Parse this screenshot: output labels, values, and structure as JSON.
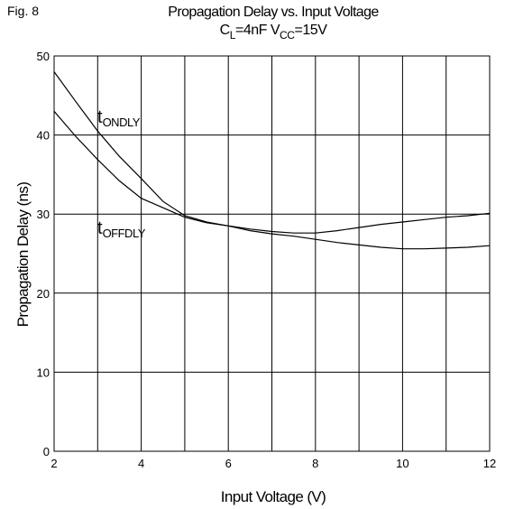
{
  "figure": {
    "label": "Fig. 8",
    "title": "Propagation Delay vs. Input Voltage",
    "subtitle_parts": [
      "C",
      "L",
      "=4nF  V",
      "CC",
      "=15V"
    ]
  },
  "chart_data": {
    "type": "line",
    "title": "Propagation Delay vs. Input Voltage",
    "subtitle": "CL=4nF VCC=15V",
    "xlabel": "Input Voltage (V)",
    "ylabel": "Propagation Delay (ns)",
    "xlim": [
      2,
      12
    ],
    "ylim": [
      0,
      50
    ],
    "xticks": [
      2,
      4,
      6,
      8,
      10,
      12
    ],
    "yticks": [
      0,
      10,
      20,
      30,
      40,
      50
    ],
    "grid": true,
    "series": [
      {
        "name": "tONDLY",
        "label_main": "t",
        "label_sub": "ONDLY",
        "x": [
          2,
          2.5,
          3,
          3.5,
          4,
          4.5,
          5,
          5.5,
          6,
          6.5,
          7,
          7.5,
          8,
          8.5,
          9,
          9.5,
          10,
          10.5,
          11,
          11.5,
          12
        ],
        "y": [
          48.0,
          44.2,
          40.5,
          37.3,
          34.5,
          31.6,
          29.8,
          29.0,
          28.5,
          28.1,
          27.8,
          27.6,
          27.6,
          27.9,
          28.3,
          28.7,
          29.0,
          29.3,
          29.6,
          29.8,
          30.1
        ]
      },
      {
        "name": "tOFFDLY",
        "label_main": "t",
        "label_sub": "OFFDLY",
        "x": [
          2,
          2.5,
          3,
          3.5,
          4,
          4.5,
          5,
          5.5,
          6,
          6.5,
          7,
          7.5,
          8,
          8.5,
          9,
          9.5,
          10,
          10.5,
          11,
          11.5,
          12
        ],
        "y": [
          43.0,
          39.8,
          36.9,
          34.2,
          32.0,
          30.8,
          29.6,
          28.9,
          28.5,
          27.9,
          27.5,
          27.2,
          26.8,
          26.4,
          26.1,
          25.8,
          25.6,
          25.6,
          25.7,
          25.8,
          26.0
        ]
      }
    ]
  }
}
